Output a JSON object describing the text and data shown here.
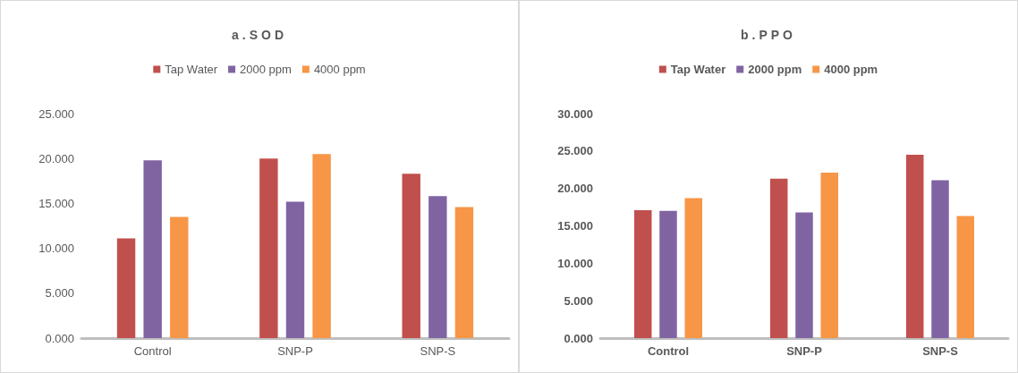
{
  "chart_data": [
    {
      "type": "bar",
      "title": "a.SOD",
      "categories": [
        "Control",
        "SNP-P",
        "SNP-S"
      ],
      "series": [
        {
          "name": "Tap Water",
          "color": "#c0504d",
          "values": [
            11.1,
            20.0,
            18.3
          ]
        },
        {
          "name": "2000 ppm",
          "color": "#8064a2",
          "values": [
            19.8,
            15.2,
            15.8
          ]
        },
        {
          "name": "4000 ppm",
          "color": "#f79646",
          "values": [
            13.5,
            20.5,
            14.6
          ]
        }
      ],
      "ylim": [
        0,
        25
      ],
      "yticks": [
        {
          "value": 0,
          "label": "0.000"
        },
        {
          "value": 5,
          "label": "5.000"
        },
        {
          "value": 10,
          "label": "10.000"
        },
        {
          "value": 15,
          "label": "15.000"
        },
        {
          "value": 20,
          "label": "20.000"
        },
        {
          "value": 25,
          "label": "25.000"
        }
      ],
      "grid": false,
      "legend": "top"
    },
    {
      "type": "bar",
      "title": "b.PPO",
      "categories": [
        "Control",
        "SNP-P",
        "SNP-S"
      ],
      "series": [
        {
          "name": "Tap Water",
          "color": "#c0504d",
          "values": [
            17.1,
            21.3,
            24.5
          ]
        },
        {
          "name": "2000 ppm",
          "color": "#8064a2",
          "values": [
            17.0,
            16.8,
            21.1
          ]
        },
        {
          "name": "4000 ppm",
          "color": "#f79646",
          "values": [
            18.7,
            22.1,
            16.3
          ]
        }
      ],
      "ylim": [
        0,
        30
      ],
      "yticks": [
        {
          "value": 0,
          "label": "0.000"
        },
        {
          "value": 5,
          "label": "5.000"
        },
        {
          "value": 10,
          "label": "10.000"
        },
        {
          "value": 15,
          "label": "15.000"
        },
        {
          "value": 20,
          "label": "20.000"
        },
        {
          "value": 25,
          "label": "25.000"
        },
        {
          "value": 30,
          "label": "30.000"
        }
      ],
      "grid": false,
      "legend": "top"
    }
  ]
}
